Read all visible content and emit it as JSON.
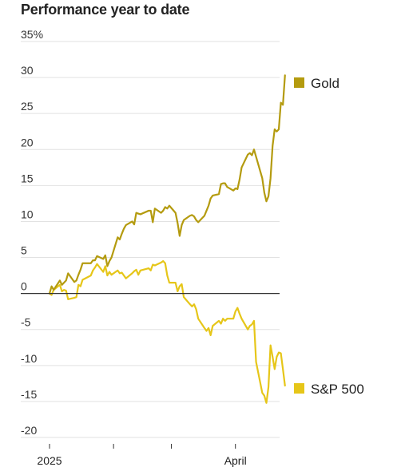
{
  "chart_data": {
    "type": "line",
    "title": "Performance year to date",
    "xlabel": "",
    "ylabel": "",
    "ylim": [
      -20,
      35
    ],
    "y_ticks": [
      35,
      30,
      25,
      20,
      15,
      10,
      5,
      0,
      -5,
      -10,
      -15,
      -20
    ],
    "y_tick_labels": [
      "35%",
      "30",
      "25",
      "20",
      "15",
      "10",
      "5",
      "0",
      "-5",
      "-10",
      "-15",
      "-20"
    ],
    "xlim": [
      "2025-01-01",
      "2025-04-22"
    ],
    "x_tick_labels": [
      "2025",
      "April"
    ],
    "x_tick_dates": [
      "2025-01-01",
      "2025-02-01",
      "2025-03-01",
      "2025-04-01"
    ],
    "grid": "horizontal",
    "zero_line": true,
    "legend": "right",
    "series": [
      {
        "name": "Gold",
        "color": "#b49b0f",
        "points": [
          [
            "2025-01-01",
            0
          ],
          [
            "2025-01-02",
            1.0
          ],
          [
            "2025-01-03",
            0.5
          ],
          [
            "2025-01-06",
            1.8
          ],
          [
            "2025-01-07",
            1.2
          ],
          [
            "2025-01-08",
            1.5
          ],
          [
            "2025-01-09",
            1.8
          ],
          [
            "2025-01-10",
            2.8
          ],
          [
            "2025-01-13",
            1.6
          ],
          [
            "2025-01-14",
            1.8
          ],
          [
            "2025-01-15",
            2.6
          ],
          [
            "2025-01-16",
            3.3
          ],
          [
            "2025-01-17",
            4.2
          ],
          [
            "2025-01-21",
            4.2
          ],
          [
            "2025-01-22",
            4.6
          ],
          [
            "2025-01-23",
            4.6
          ],
          [
            "2025-01-24",
            5.2
          ],
          [
            "2025-01-27",
            4.8
          ],
          [
            "2025-01-28",
            5.3
          ],
          [
            "2025-01-29",
            3.8
          ],
          [
            "2025-01-30",
            4.5
          ],
          [
            "2025-01-31",
            5.0
          ],
          [
            "2025-02-03",
            7.8
          ],
          [
            "2025-02-04",
            7.5
          ],
          [
            "2025-02-05",
            8.3
          ],
          [
            "2025-02-06",
            9.0
          ],
          [
            "2025-02-07",
            9.5
          ],
          [
            "2025-02-10",
            10.0
          ],
          [
            "2025-02-11",
            9.6
          ],
          [
            "2025-02-12",
            11.2
          ],
          [
            "2025-02-13",
            11.1
          ],
          [
            "2025-02-14",
            11.0
          ],
          [
            "2025-02-18",
            11.5
          ],
          [
            "2025-02-19",
            11.5
          ],
          [
            "2025-02-20",
            9.9
          ],
          [
            "2025-02-21",
            11.8
          ],
          [
            "2025-02-24",
            11.2
          ],
          [
            "2025-02-25",
            11.5
          ],
          [
            "2025-02-26",
            12.0
          ],
          [
            "2025-02-27",
            11.8
          ],
          [
            "2025-02-28",
            12.2
          ],
          [
            "2025-03-03",
            11.2
          ],
          [
            "2025-03-04",
            9.8
          ],
          [
            "2025-03-05",
            8.0
          ],
          [
            "2025-03-06",
            9.5
          ],
          [
            "2025-03-07",
            10.2
          ],
          [
            "2025-03-10",
            10.8
          ],
          [
            "2025-03-11",
            10.9
          ],
          [
            "2025-03-12",
            10.7
          ],
          [
            "2025-03-13",
            10.2
          ],
          [
            "2025-03-14",
            9.9
          ],
          [
            "2025-03-17",
            10.8
          ],
          [
            "2025-03-18",
            11.5
          ],
          [
            "2025-03-19",
            12.2
          ],
          [
            "2025-03-20",
            13.2
          ],
          [
            "2025-03-21",
            13.6
          ],
          [
            "2025-03-24",
            13.8
          ],
          [
            "2025-03-25",
            15.2
          ],
          [
            "2025-03-26",
            15.3
          ],
          [
            "2025-03-27",
            15.3
          ],
          [
            "2025-03-28",
            14.8
          ],
          [
            "2025-03-31",
            14.3
          ],
          [
            "2025-04-01",
            14.6
          ],
          [
            "2025-04-02",
            14.5
          ],
          [
            "2025-04-03",
            15.8
          ],
          [
            "2025-04-04",
            17.5
          ],
          [
            "2025-04-07",
            19.3
          ],
          [
            "2025-04-08",
            19.5
          ],
          [
            "2025-04-09",
            19.2
          ],
          [
            "2025-04-10",
            20.0
          ],
          [
            "2025-04-11",
            19.0
          ],
          [
            "2025-04-14",
            16.0
          ],
          [
            "2025-04-15",
            14.0
          ],
          [
            "2025-04-16",
            12.8
          ],
          [
            "2025-04-17",
            13.5
          ],
          [
            "2025-04-18",
            16.0
          ],
          [
            "2025-04-19",
            20.5
          ],
          [
            "2025-04-20",
            22.8
          ],
          [
            "2025-04-21",
            22.5
          ],
          [
            "2025-04-22",
            22.8
          ],
          [
            "2025-04-23",
            26.5
          ],
          [
            "2025-04-24",
            26.2
          ],
          [
            "2025-04-25",
            30.3
          ]
        ]
      },
      {
        "name": "S&P 500",
        "color": "#e6c619",
        "points": [
          [
            "2025-01-01",
            0
          ],
          [
            "2025-01-02",
            -0.2
          ],
          [
            "2025-01-03",
            0.5
          ],
          [
            "2025-01-06",
            1.2
          ],
          [
            "2025-01-07",
            0.3
          ],
          [
            "2025-01-08",
            0.5
          ],
          [
            "2025-01-09",
            0.4
          ],
          [
            "2025-01-10",
            -0.8
          ],
          [
            "2025-01-13",
            -0.6
          ],
          [
            "2025-01-14",
            -0.5
          ],
          [
            "2025-01-15",
            1.2
          ],
          [
            "2025-01-16",
            1.0
          ],
          [
            "2025-01-17",
            1.9
          ],
          [
            "2025-01-21",
            2.5
          ],
          [
            "2025-01-22",
            3.2
          ],
          [
            "2025-01-23",
            3.6
          ],
          [
            "2025-01-24",
            4.1
          ],
          [
            "2025-01-27",
            3.0
          ],
          [
            "2025-01-28",
            3.8
          ],
          [
            "2025-01-29",
            2.5
          ],
          [
            "2025-01-30",
            3.0
          ],
          [
            "2025-01-31",
            2.6
          ],
          [
            "2025-02-03",
            3.2
          ],
          [
            "2025-02-04",
            2.8
          ],
          [
            "2025-02-05",
            2.9
          ],
          [
            "2025-02-06",
            2.5
          ],
          [
            "2025-02-07",
            2.1
          ],
          [
            "2025-02-10",
            2.8
          ],
          [
            "2025-02-11",
            3.1
          ],
          [
            "2025-02-12",
            3.3
          ],
          [
            "2025-02-13",
            2.6
          ],
          [
            "2025-02-14",
            3.2
          ],
          [
            "2025-02-18",
            3.5
          ],
          [
            "2025-02-19",
            3.2
          ],
          [
            "2025-02-20",
            4.0
          ],
          [
            "2025-02-21",
            3.9
          ],
          [
            "2025-02-24",
            4.3
          ],
          [
            "2025-02-25",
            4.5
          ],
          [
            "2025-02-26",
            4.2
          ],
          [
            "2025-02-27",
            2.5
          ],
          [
            "2025-02-28",
            1.5
          ],
          [
            "2025-03-03",
            1.5
          ],
          [
            "2025-03-04",
            0.3
          ],
          [
            "2025-03-05",
            1.0
          ],
          [
            "2025-03-06",
            1.3
          ],
          [
            "2025-03-07",
            -0.5
          ],
          [
            "2025-03-10",
            -1.5
          ],
          [
            "2025-03-11",
            -1.8
          ],
          [
            "2025-03-12",
            -1.5
          ],
          [
            "2025-03-13",
            -2.2
          ],
          [
            "2025-03-14",
            -3.5
          ],
          [
            "2025-03-17",
            -4.8
          ],
          [
            "2025-03-18",
            -5.2
          ],
          [
            "2025-03-19",
            -4.8
          ],
          [
            "2025-03-20",
            -5.8
          ],
          [
            "2025-03-21",
            -4.5
          ],
          [
            "2025-03-24",
            -3.8
          ],
          [
            "2025-03-25",
            -4.2
          ],
          [
            "2025-03-26",
            -3.5
          ],
          [
            "2025-03-27",
            -3.8
          ],
          [
            "2025-03-28",
            -3.5
          ],
          [
            "2025-03-31",
            -3.5
          ],
          [
            "2025-04-01",
            -2.5
          ],
          [
            "2025-04-02",
            -2.0
          ],
          [
            "2025-04-03",
            -2.8
          ],
          [
            "2025-04-04",
            -3.5
          ],
          [
            "2025-04-07",
            -5.0
          ],
          [
            "2025-04-08",
            -4.5
          ],
          [
            "2025-04-09",
            -4.3
          ],
          [
            "2025-04-10",
            -3.8
          ],
          [
            "2025-04-11",
            -9.5
          ],
          [
            "2025-04-14",
            -13.8
          ],
          [
            "2025-04-15",
            -14.2
          ],
          [
            "2025-04-16",
            -15.2
          ],
          [
            "2025-04-17",
            -13.0
          ],
          [
            "2025-04-18",
            -7.2
          ],
          [
            "2025-04-19",
            -8.8
          ],
          [
            "2025-04-20",
            -10.5
          ],
          [
            "2025-04-21",
            -8.8
          ],
          [
            "2025-04-22",
            -8.2
          ],
          [
            "2025-04-23",
            -8.3
          ],
          [
            "2025-04-24",
            -10.5
          ],
          [
            "2025-04-25",
            -12.8
          ]
        ]
      }
    ]
  }
}
